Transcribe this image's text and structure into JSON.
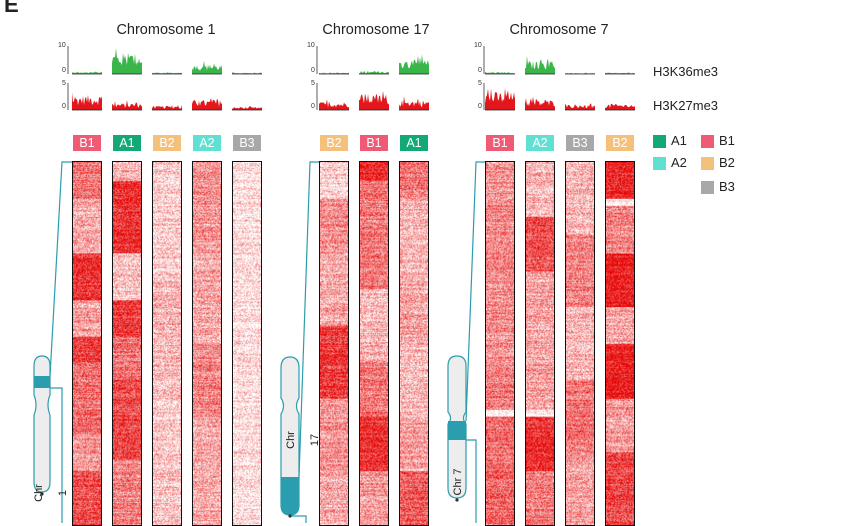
{
  "figure": {
    "panel_letter": "E",
    "track_labels": [
      "H3K36me3",
      "H3K27me3"
    ],
    "tick_labels": {
      "h3k36_max": "10",
      "h3k27_max": "5",
      "zero": "0"
    },
    "colors": {
      "A1": "#12a878",
      "A2": "#5fe0d2",
      "B1": "#f05a75",
      "B2": "#f5c07a",
      "B3": "#a8a8a8",
      "green_track": "#3ab54a",
      "red_track": "#e3161b",
      "ideogram": "#2a9dae"
    },
    "legend": {
      "col1": [
        {
          "label": "A1",
          "key": "A1"
        },
        {
          "label": "A2",
          "key": "A2"
        }
      ],
      "col2": [
        {
          "label": "B1",
          "key": "B1"
        },
        {
          "label": "B2",
          "key": "B2"
        },
        {
          "label": "B3",
          "key": "B3"
        }
      ]
    },
    "chromosomes": [
      {
        "title": "Chromosome 1",
        "ideogram_label": "Chr 1",
        "subcompartments": [
          "B1",
          "A1",
          "B2",
          "A2",
          "B3"
        ]
      },
      {
        "title": "Chromosome 17",
        "ideogram_label": "Chr 17",
        "subcompartments": [
          "B2",
          "B1",
          "A1"
        ]
      },
      {
        "title": "Chromosome 7",
        "ideogram_label": "Chr 7",
        "subcompartments": [
          "B1",
          "A2",
          "B3",
          "B2"
        ]
      }
    ]
  }
}
